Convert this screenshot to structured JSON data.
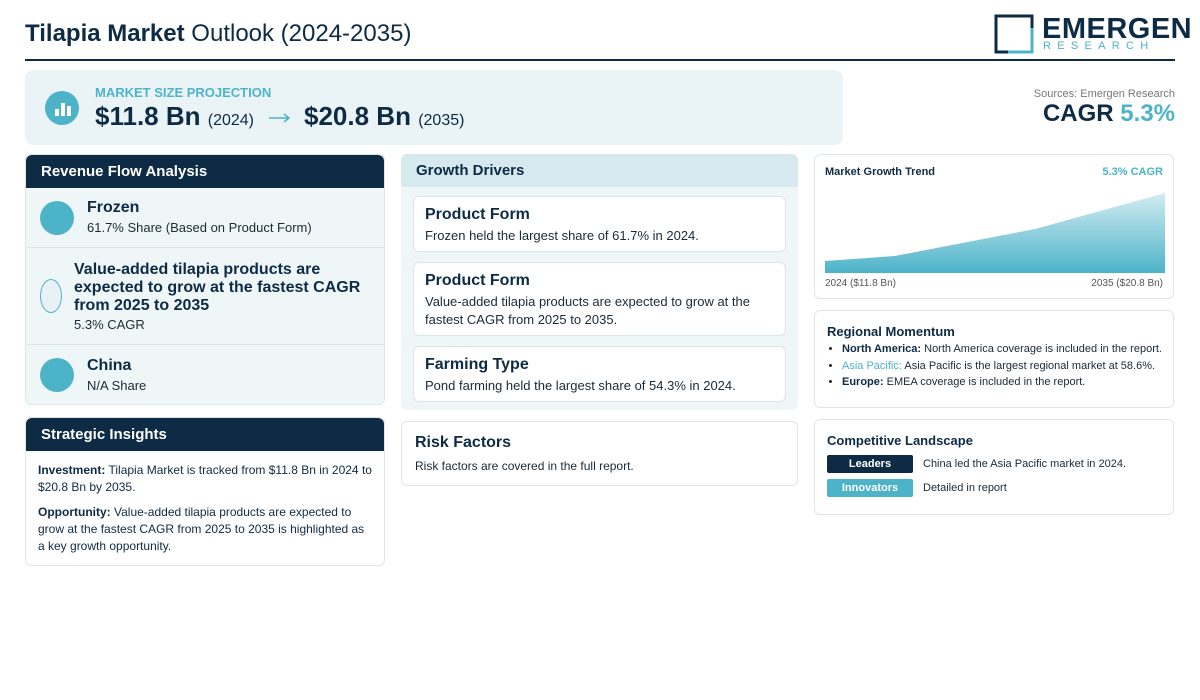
{
  "header": {
    "title_bold": "Tilapia Market",
    "title_rest": "Outlook (2024-2035)",
    "logo": {
      "name": "EMERGEN",
      "sub": "RESEARCH"
    }
  },
  "projection": {
    "label": "MARKET SIZE PROJECTION",
    "start_value": "$11.8 Bn",
    "start_year": "(2024)",
    "end_value": "$20.8 Bn",
    "end_year": "(2035)"
  },
  "sources": "Sources: Emergen Research",
  "cagr": {
    "label": "CAGR",
    "value": "5.3%"
  },
  "revenue_flow": {
    "title": "Revenue Flow Analysis",
    "items": [
      {
        "title": "Frozen",
        "detail": "61.7% Share (Based on Product Form)"
      },
      {
        "title": "Value-added tilapia products are expected to grow at the fastest CAGR from 2025 to 2035",
        "detail": "5.3% CAGR"
      },
      {
        "title": "China",
        "detail": "N/A Share"
      }
    ]
  },
  "strategic_insights": {
    "title": "Strategic Insights",
    "items": [
      {
        "label": "Investment:",
        "text": "Tilapia Market is tracked from $11.8 Bn in 2024 to $20.8 Bn by 2035."
      },
      {
        "label": "Opportunity:",
        "text": "Value-added tilapia products are expected to grow at the fastest CAGR from 2025 to 2035 is highlighted as a key growth opportunity."
      }
    ]
  },
  "growth_drivers": {
    "title": "Growth Drivers",
    "items": [
      {
        "title": "Product Form",
        "text": "Frozen held the largest share of 61.7% in 2024."
      },
      {
        "title": "Product Form",
        "text": "Value-added tilapia products are expected to grow at the fastest CAGR from 2025 to 2035."
      },
      {
        "title": "Farming Type",
        "text": "Pond farming held the largest share of 54.3% in 2024."
      }
    ]
  },
  "risk_factors": {
    "title": "Risk Factors",
    "text": "Risk factors are covered in the full report."
  },
  "trend": {
    "title": "Market Growth Trend",
    "badge": "5.3% CAGR",
    "start_label": "2024 ($11.8 Bn)",
    "end_label": "2035 ($20.8 Bn)"
  },
  "regional": {
    "title": "Regional Momentum",
    "items": [
      {
        "region": "North America:",
        "text": "North America coverage is included in the report."
      },
      {
        "region": "Asia Pacific:",
        "text": "Asia Pacific is the largest regional market at 58.6%."
      },
      {
        "region": "Europe:",
        "text": "EMEA coverage is included in the report."
      }
    ]
  },
  "competitive": {
    "title": "Competitive Landscape",
    "rows": [
      {
        "tag": "Leaders",
        "text": "China led the Asia Pacific market in 2024."
      },
      {
        "tag": "Innovators",
        "text": "Detailed in report"
      }
    ]
  }
}
